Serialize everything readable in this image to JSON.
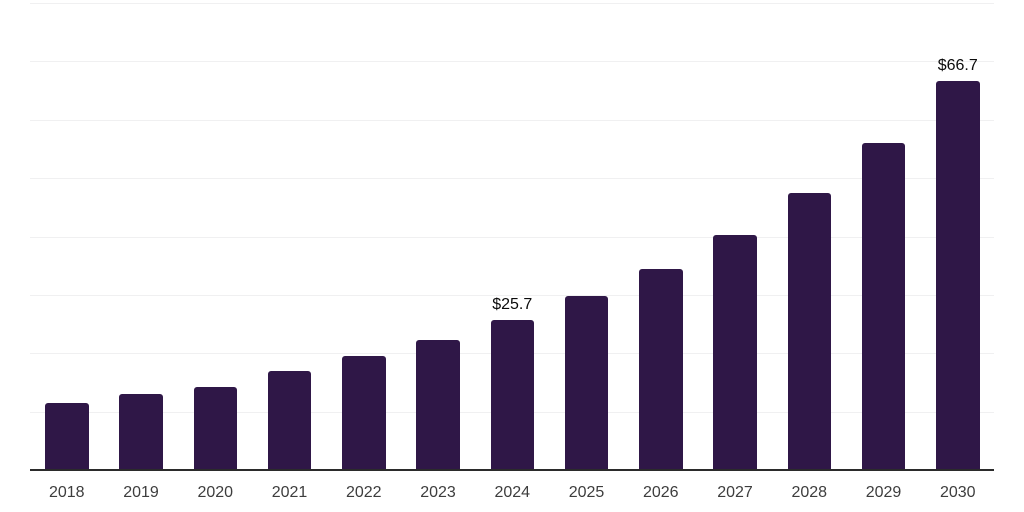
{
  "chart_data": {
    "type": "bar",
    "title": "",
    "xlabel": "",
    "ylabel": "",
    "categories": [
      "2018",
      "2019",
      "2020",
      "2021",
      "2022",
      "2023",
      "2024",
      "2025",
      "2026",
      "2027",
      "2028",
      "2029",
      "2030"
    ],
    "values": [
      11.5,
      13.1,
      14.2,
      17.0,
      19.5,
      22.3,
      25.7,
      29.8,
      34.5,
      40.3,
      47.4,
      56.0,
      66.7
    ],
    "data_labels": {
      "2024": "$25.7",
      "2030": "$66.7"
    },
    "ylim": [
      0,
      80
    ],
    "grid_step": 10,
    "grid": "horizontal-only",
    "legend_position": "none",
    "y_axis_labels_visible": false,
    "colors": {
      "bar": "#2f1747",
      "gridline": "#f0f0f1",
      "axis_line": "#2b2b2b",
      "tick_label": "#3d3d3d",
      "data_label": "#0b0b0b",
      "background": "#ffffff"
    }
  }
}
